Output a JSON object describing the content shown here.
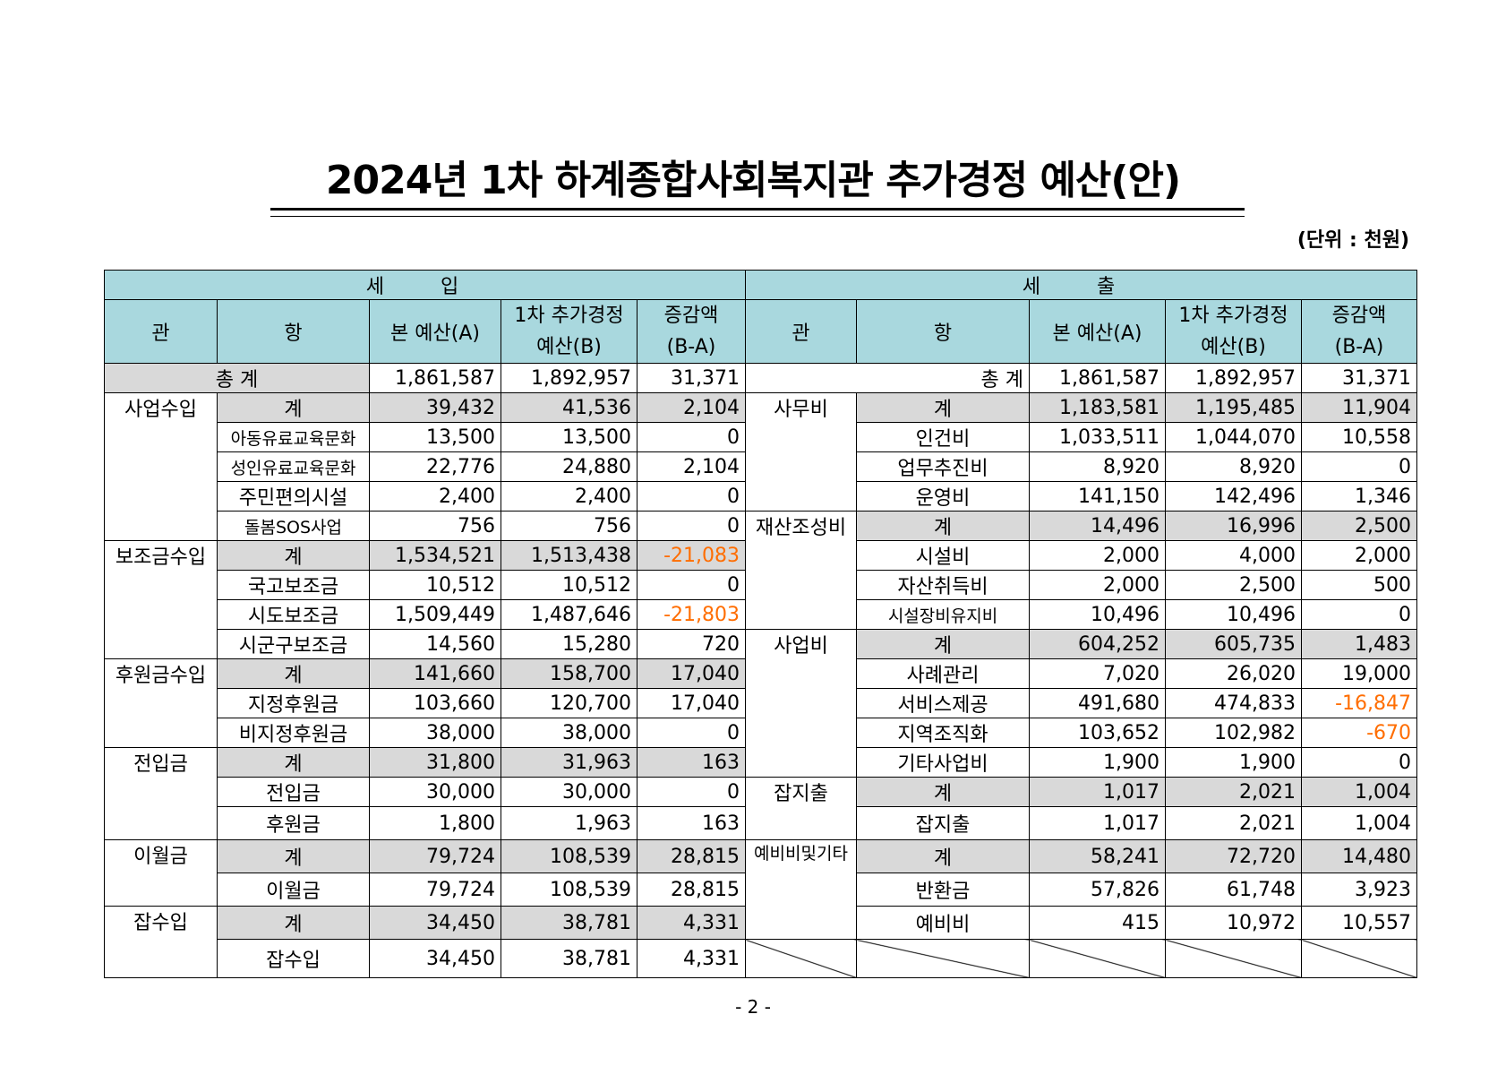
{
  "title": "2024년 1차 하계종합사회복지관 추가경정 예산(안)",
  "unit": "(단위 : 천원)",
  "page_number": "- 2 -",
  "header": {
    "revenue": "세    입",
    "expense": "세    출",
    "gwan": "관",
    "hang": "항",
    "base": "본 예산(A)",
    "supp_1": "1차 추가경정",
    "supp_2": "예산(B)",
    "diff_1": "증감액",
    "diff_2": "(B-A)"
  },
  "total": {
    "label": "총  계",
    "revenue": [
      "1,861,587",
      "1,892,957",
      "31,371"
    ],
    "expense": [
      "1,861,587",
      "1,892,957",
      "31,371"
    ]
  },
  "revenue_rows": [
    {
      "gwan": "사업수입",
      "hang": "계",
      "a": "39,432",
      "b": "41,536",
      "d": "2,104"
    },
    {
      "gwan": "",
      "hang": "아동유료교육문화",
      "a": "13,500",
      "b": "13,500",
      "d": "0"
    },
    {
      "gwan": "",
      "hang": "성인유료교육문화",
      "a": "22,776",
      "b": "24,880",
      "d": "2,104"
    },
    {
      "gwan": "",
      "hang": "주민편의시설",
      "a": "2,400",
      "b": "2,400",
      "d": "0"
    },
    {
      "gwan": "",
      "hang": "돌봄SOS사업",
      "a": "756",
      "b": "756",
      "d": "0"
    },
    {
      "gwan": "보조금수입",
      "hang": "계",
      "a": "1,534,521",
      "b": "1,513,438",
      "d": "-21,083"
    },
    {
      "gwan": "",
      "hang": "국고보조금",
      "a": "10,512",
      "b": "10,512",
      "d": "0"
    },
    {
      "gwan": "",
      "hang": "시도보조금",
      "a": "1,509,449",
      "b": "1,487,646",
      "d": "-21,803"
    },
    {
      "gwan": "",
      "hang": "시군구보조금",
      "a": "14,560",
      "b": "15,280",
      "d": "720"
    },
    {
      "gwan": "후원금수입",
      "hang": "계",
      "a": "141,660",
      "b": "158,700",
      "d": "17,040"
    },
    {
      "gwan": "",
      "hang": "지정후원금",
      "a": "103,660",
      "b": "120,700",
      "d": "17,040"
    },
    {
      "gwan": "",
      "hang": "비지정후원금",
      "a": "38,000",
      "b": "38,000",
      "d": "0"
    },
    {
      "gwan": "전입금",
      "hang": "계",
      "a": "31,800",
      "b": "31,963",
      "d": "163"
    },
    {
      "gwan": "",
      "hang": "전입금",
      "a": "30,000",
      "b": "30,000",
      "d": "0"
    },
    {
      "gwan": "",
      "hang": "후원금",
      "a": "1,800",
      "b": "1,963",
      "d": "163"
    },
    {
      "gwan": "이월금",
      "hang": "계",
      "a": "79,724",
      "b": "108,539",
      "d": "28,815"
    },
    {
      "gwan": "",
      "hang": "이월금",
      "a": "79,724",
      "b": "108,539",
      "d": "28,815"
    },
    {
      "gwan": "잡수입",
      "hang": "계",
      "a": "34,450",
      "b": "38,781",
      "d": "4,331"
    },
    {
      "gwan": "",
      "hang": "잡수입",
      "a": "34,450",
      "b": "38,781",
      "d": "4,331"
    }
  ],
  "expense_rows": [
    {
      "gwan": "사무비",
      "hang": "계",
      "a": "1,183,581",
      "b": "1,195,485",
      "d": "11,904"
    },
    {
      "gwan": "",
      "hang": "인건비",
      "a": "1,033,511",
      "b": "1,044,070",
      "d": "10,558"
    },
    {
      "gwan": "",
      "hang": "업무추진비",
      "a": "8,920",
      "b": "8,920",
      "d": "0"
    },
    {
      "gwan": "",
      "hang": "운영비",
      "a": "141,150",
      "b": "142,496",
      "d": "1,346"
    },
    {
      "gwan": "재산조성비",
      "hang": "계",
      "a": "14,496",
      "b": "16,996",
      "d": "2,500"
    },
    {
      "gwan": "",
      "hang": "시설비",
      "a": "2,000",
      "b": "4,000",
      "d": "2,000"
    },
    {
      "gwan": "",
      "hang": "자산취득비",
      "a": "2,000",
      "b": "2,500",
      "d": "500"
    },
    {
      "gwan": "",
      "hang": "시설장비유지비",
      "a": "10,496",
      "b": "10,496",
      "d": "0"
    },
    {
      "gwan": "사업비",
      "hang": "계",
      "a": "604,252",
      "b": "605,735",
      "d": "1,483"
    },
    {
      "gwan": "",
      "hang": "사례관리",
      "a": "7,020",
      "b": "26,020",
      "d": "19,000"
    },
    {
      "gwan": "",
      "hang": "서비스제공",
      "a": "491,680",
      "b": "474,833",
      "d": "-16,847"
    },
    {
      "gwan": "",
      "hang": "지역조직화",
      "a": "103,652",
      "b": "102,982",
      "d": "-670"
    },
    {
      "gwan": "",
      "hang": "기타사업비",
      "a": "1,900",
      "b": "1,900",
      "d": "0"
    },
    {
      "gwan": "잡지출",
      "hang": "계",
      "a": "1,017",
      "b": "2,021",
      "d": "1,004"
    },
    {
      "gwan": "",
      "hang": "잡지출",
      "a": "1,017",
      "b": "2,021",
      "d": "1,004"
    },
    {
      "gwan": "예비비및기타",
      "hang": "계",
      "a": "58,241",
      "b": "72,720",
      "d": "14,480"
    },
    {
      "gwan": "",
      "hang": "반환금",
      "a": "57,826",
      "b": "61,748",
      "d": "3,923"
    },
    {
      "gwan": "",
      "hang": "예비비",
      "a": "415",
      "b": "10,972",
      "d": "10,557"
    }
  ],
  "colors": {
    "header_bg": "#a9d8de",
    "subtotal_bg": "#d9d9d9",
    "negative": "#ff6d00"
  }
}
